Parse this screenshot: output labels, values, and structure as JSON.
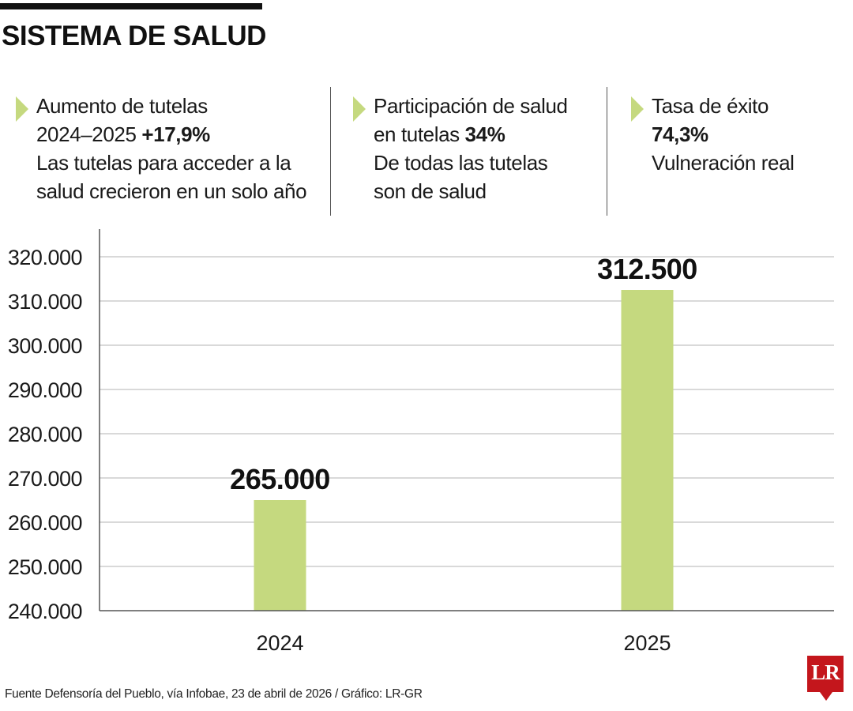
{
  "header": {
    "title": "SISTEMA DE SALUD"
  },
  "stats": [
    {
      "line1": "Aumento de tutelas",
      "line2_text": "2024–2025 ",
      "line2_bold": "+17,9%",
      "line3": "Las tutelas para acceder a la",
      "line4": "salud crecieron en un solo año"
    },
    {
      "line1": "Participación de salud",
      "line2_text": "en tutelas ",
      "line2_bold": "34%",
      "line3": "De todas las tutelas",
      "line4": "son de salud"
    },
    {
      "line1": "Tasa de éxito",
      "line2_text": "",
      "line2_bold": "74,3%",
      "line3": "Vulneración real",
      "line4": ""
    }
  ],
  "chart_data": {
    "type": "bar",
    "categories": [
      "2024",
      "2025"
    ],
    "values": [
      265000,
      312500
    ],
    "value_labels": [
      "265.000",
      "312.500"
    ],
    "ylim": [
      240000,
      320000
    ],
    "yticks": [
      240000,
      250000,
      260000,
      270000,
      280000,
      290000,
      300000,
      310000,
      320000
    ],
    "ytick_labels": [
      "240.000",
      "250.000",
      "260.000",
      "270.000",
      "280.000",
      "290.000",
      "300.000",
      "310.000",
      "320.000"
    ],
    "title": "",
    "xlabel": "",
    "ylabel": "",
    "grid": true,
    "bar_color": "#c5d97f"
  },
  "footer": {
    "source": "Fuente Defensoría del Pueblo, vía Infobae, 23 de abril de 2026 / Gráfico: LR-GR"
  },
  "logo": {
    "text": "LR"
  },
  "colors": {
    "accent": "#c5d97f",
    "brand": "#c4161c"
  }
}
